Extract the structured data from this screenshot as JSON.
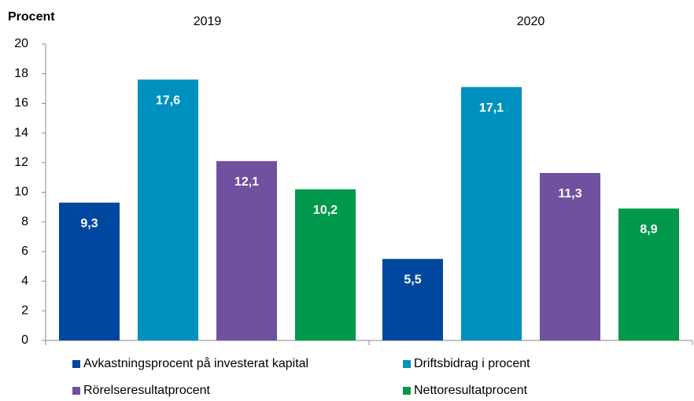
{
  "chart_data": {
    "type": "bar",
    "y_label": "Procent",
    "categories": [
      "2019",
      "2020"
    ],
    "series": [
      {
        "name": "Avkastningsprocent på investerat kapital",
        "color": "#0047a0",
        "values": [
          9.3,
          5.5
        ],
        "value_labels": [
          "9,3",
          "5,5"
        ]
      },
      {
        "name": "Driftsbidrag i procent",
        "color": "#0090c0",
        "values": [
          17.6,
          17.1
        ],
        "value_labels": [
          "17,6",
          "17,1"
        ]
      },
      {
        "name": "Rörelseresultatprocent",
        "color": "#7051a0",
        "values": [
          12.1,
          11.3
        ],
        "value_labels": [
          "12,1",
          "11,3"
        ]
      },
      {
        "name": "Nettoresultatprocent",
        "color": "#00984a",
        "values": [
          10.2,
          8.9
        ],
        "value_labels": [
          "10,2",
          "8,9"
        ]
      }
    ],
    "ylim": [
      0,
      20
    ],
    "yticks": [
      0,
      2,
      4,
      6,
      8,
      10,
      12,
      14,
      16,
      18,
      20
    ],
    "grid": false,
    "legend": "bottom"
  }
}
